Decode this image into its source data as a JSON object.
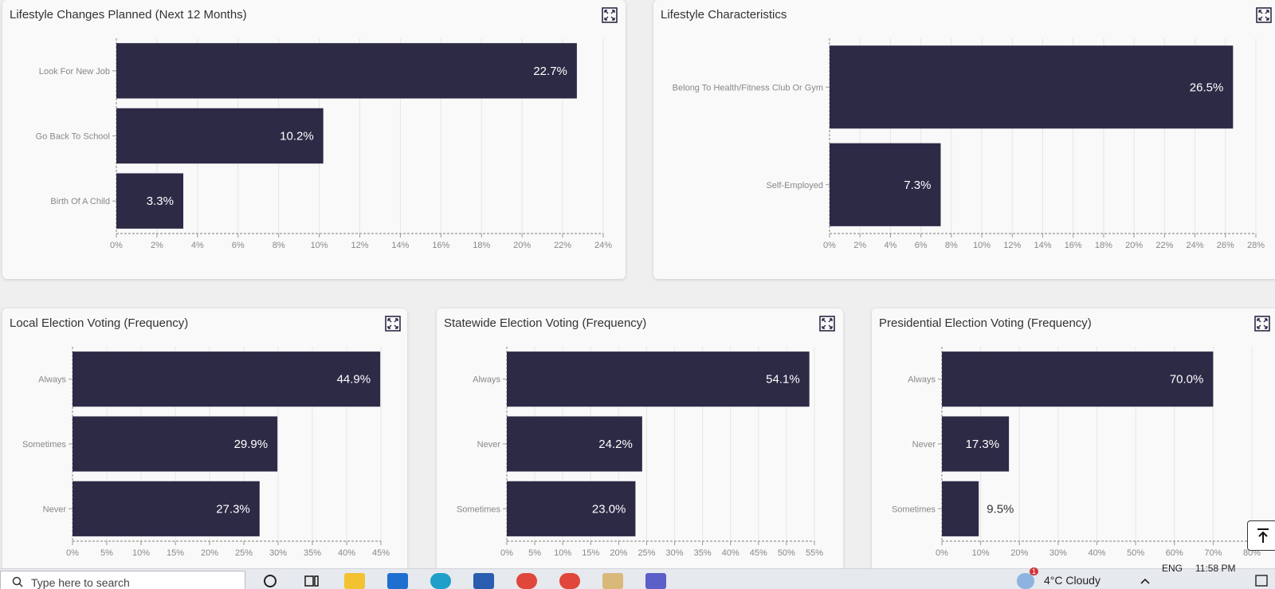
{
  "cards": [
    {
      "id": "lifestyle-changes",
      "title": "Lifestyle Changes Planned (Next 12 Months)",
      "chart_data": {
        "type": "bar",
        "orientation": "horizontal",
        "categories": [
          "Look For New Job",
          "Go Back To School",
          "Birth Of A Child"
        ],
        "values": [
          22.7,
          10.2,
          3.3
        ],
        "labels": [
          "22.7%",
          "10.2%",
          "3.3%"
        ],
        "xlim": [
          0,
          24
        ],
        "ticks": [
          "0%",
          "2%",
          "4%",
          "6%",
          "8%",
          "10%",
          "12%",
          "14%",
          "16%",
          "18%",
          "20%",
          "22%",
          "24%"
        ]
      }
    },
    {
      "id": "lifestyle-characteristics",
      "title": "Lifestyle Characteristics",
      "chart_data": {
        "type": "bar",
        "orientation": "horizontal",
        "categories": [
          "Belong To Health/Fitness Club Or Gym",
          "Self-Employed"
        ],
        "values": [
          26.5,
          7.3
        ],
        "labels": [
          "26.5%",
          "7.3%"
        ],
        "xlim": [
          0,
          28
        ],
        "ticks": [
          "0%",
          "2%",
          "4%",
          "6%",
          "8%",
          "10%",
          "12%",
          "14%",
          "16%",
          "18%",
          "20%",
          "22%",
          "24%",
          "26%",
          "28%"
        ]
      }
    },
    {
      "id": "local-election",
      "title": "Local Election Voting (Frequency)",
      "chart_data": {
        "type": "bar",
        "orientation": "horizontal",
        "categories": [
          "Always",
          "Sometimes",
          "Never"
        ],
        "values": [
          44.9,
          29.9,
          27.3
        ],
        "labels": [
          "44.9%",
          "29.9%",
          "27.3%"
        ],
        "xlim": [
          0,
          45
        ],
        "ticks": [
          "0%",
          "5%",
          "10%",
          "15%",
          "20%",
          "25%",
          "30%",
          "35%",
          "40%",
          "45%"
        ]
      }
    },
    {
      "id": "statewide-election",
      "title": "Statewide Election Voting (Frequency)",
      "chart_data": {
        "type": "bar",
        "orientation": "horizontal",
        "categories": [
          "Always",
          "Never",
          "Sometimes"
        ],
        "values": [
          54.1,
          24.2,
          23.0
        ],
        "labels": [
          "54.1%",
          "24.2%",
          "23.0%"
        ],
        "xlim": [
          0,
          55
        ],
        "ticks": [
          "0%",
          "5%",
          "10%",
          "15%",
          "20%",
          "25%",
          "30%",
          "35%",
          "40%",
          "45%",
          "50%",
          "55%"
        ]
      }
    },
    {
      "id": "presidential-election",
      "title": "Presidential Election Voting (Frequency)",
      "chart_data": {
        "type": "bar",
        "orientation": "horizontal",
        "categories": [
          "Always",
          "Never",
          "Sometimes"
        ],
        "values": [
          70.0,
          17.3,
          9.5
        ],
        "labels": [
          "70.0%",
          "17.3%",
          "9.5%"
        ],
        "xlim": [
          0,
          80
        ],
        "ticks": [
          "0%",
          "10%",
          "20%",
          "30%",
          "40%",
          "50%",
          "60%",
          "70%",
          "80%"
        ]
      }
    }
  ],
  "colors": {
    "bar": "#2d2a46",
    "bar_label_inside": "#ffffff",
    "bar_label_outside": "#333333",
    "tick_label": "#888888",
    "grid": "#e6e6e6"
  },
  "icons": {
    "expand": "expand-icon",
    "scroll_top": "arrow-up-to-line-icon"
  },
  "taskbar": {
    "search_placeholder": "Type here to search",
    "weather_badge": "1",
    "weather": "4°C  Cloudy",
    "language": "ENG",
    "time": "11:58 PM"
  }
}
